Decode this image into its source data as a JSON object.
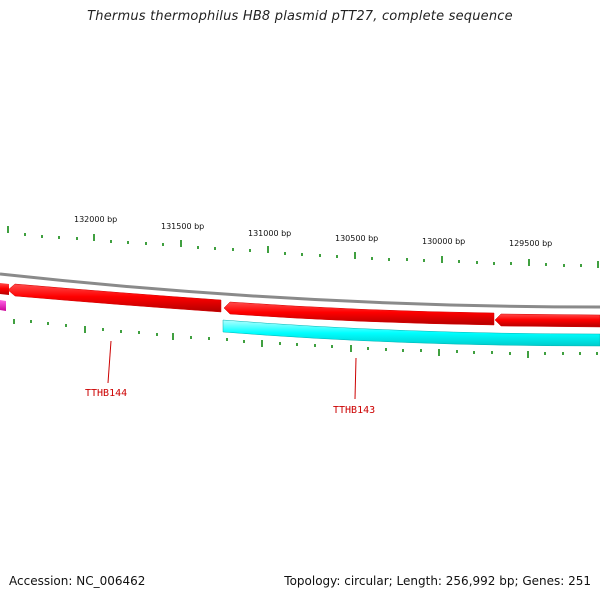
{
  "title": "Thermus thermophilus HB8 plasmid pTT27, complete sequence",
  "footer": {
    "accession": "Accession: NC_006462",
    "summary": "Topology: circular; Length: 256,992 bp; Genes: 251"
  },
  "colors": {
    "backbone": "#8a8a8a",
    "forward_gene": "#ff0000",
    "reverse_gene": "#00ffff",
    "partial_gene": "#ff00cc",
    "tick": "#008000",
    "gene_label": "#cc0000"
  },
  "bp_ticks": [
    {
      "label": "132000 bp"
    },
    {
      "label": "131500 bp"
    },
    {
      "label": "131000 bp"
    },
    {
      "label": "130500 bp"
    },
    {
      "label": "130000 bp"
    },
    {
      "label": "129500 bp"
    }
  ],
  "gene_labels": [
    {
      "text": "TTHB144"
    },
    {
      "text": "TTHB143"
    }
  ]
}
